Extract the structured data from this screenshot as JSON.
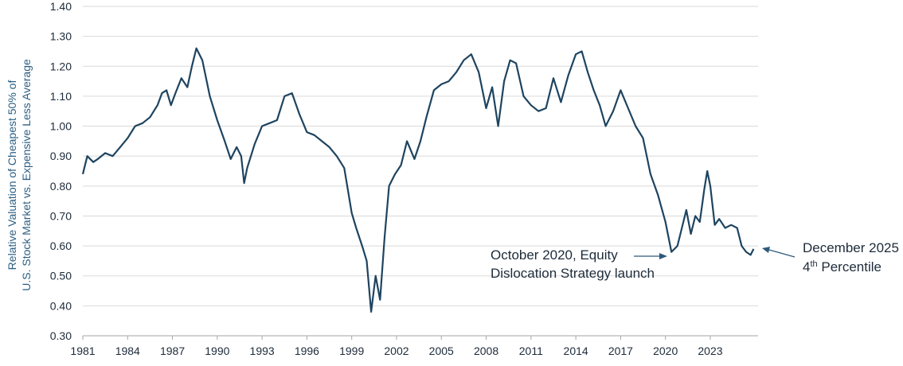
{
  "chart_data": {
    "type": "line",
    "title": "",
    "ylabel_line1": "Relative Valuation of Cheapest 50% of",
    "ylabel_line2": "U.S. Stock Market vs. Expensive Less Average",
    "xlabel": "",
    "ylim": [
      0.3,
      1.4
    ],
    "xlim": [
      1981,
      2026.2
    ],
    "y_ticks": [
      "0.30",
      "0.40",
      "0.50",
      "0.60",
      "0.70",
      "0.80",
      "0.90",
      "1.00",
      "1.10",
      "1.20",
      "1.30",
      "1.40"
    ],
    "x_ticks": [
      "1981",
      "1984",
      "1987",
      "1990",
      "1993",
      "1996",
      "1999",
      "2002",
      "2005",
      "2008",
      "2011",
      "2014",
      "2017",
      "2020",
      "2023"
    ],
    "grid": "horizontal",
    "series": [
      {
        "name": "Relative Valuation",
        "color": "#1e4460",
        "x": [
          1981.0,
          1981.3,
          1981.7,
          1982.0,
          1982.5,
          1983.0,
          1983.5,
          1984.0,
          1984.5,
          1985.0,
          1985.5,
          1986.0,
          1986.3,
          1986.6,
          1986.9,
          1987.2,
          1987.6,
          1988.0,
          1988.3,
          1988.6,
          1989.0,
          1989.5,
          1990.0,
          1990.5,
          1990.9,
          1991.3,
          1991.6,
          1991.8,
          1992.0,
          1992.5,
          1993.0,
          1993.5,
          1994.0,
          1994.5,
          1995.0,
          1995.5,
          1996.0,
          1996.5,
          1997.0,
          1997.5,
          1998.0,
          1998.5,
          1999.0,
          1999.3,
          1999.7,
          2000.0,
          2000.3,
          2000.6,
          2000.9,
          2001.2,
          2001.5,
          2001.9,
          2002.3,
          2002.7,
          2003.2,
          2003.6,
          2004.0,
          2004.5,
          2005.0,
          2005.5,
          2006.0,
          2006.5,
          2007.0,
          2007.5,
          2008.0,
          2008.4,
          2008.8,
          2009.2,
          2009.6,
          2010.0,
          2010.5,
          2011.0,
          2011.5,
          2012.0,
          2012.5,
          2013.0,
          2013.5,
          2014.0,
          2014.4,
          2014.8,
          2015.2,
          2015.6,
          2016.0,
          2016.5,
          2017.0,
          2017.5,
          2018.0,
          2018.5,
          2019.0,
          2019.5,
          2020.0,
          2020.4,
          2020.8,
          2021.1,
          2021.4,
          2021.7,
          2022.0,
          2022.3,
          2022.6,
          2022.8,
          2023.0,
          2023.3,
          2023.6,
          2024.0,
          2024.4,
          2024.8,
          2025.1,
          2025.4,
          2025.7,
          2025.9
        ],
        "values": [
          0.84,
          0.9,
          0.88,
          0.89,
          0.91,
          0.9,
          0.93,
          0.96,
          1.0,
          1.01,
          1.03,
          1.07,
          1.11,
          1.12,
          1.07,
          1.11,
          1.16,
          1.13,
          1.2,
          1.26,
          1.22,
          1.1,
          1.02,
          0.95,
          0.89,
          0.93,
          0.9,
          0.81,
          0.86,
          0.94,
          1.0,
          1.01,
          1.02,
          1.1,
          1.11,
          1.04,
          0.98,
          0.97,
          0.95,
          0.93,
          0.9,
          0.86,
          0.71,
          0.66,
          0.6,
          0.55,
          0.38,
          0.5,
          0.42,
          0.63,
          0.8,
          0.84,
          0.87,
          0.95,
          0.89,
          0.95,
          1.03,
          1.12,
          1.14,
          1.15,
          1.18,
          1.22,
          1.24,
          1.18,
          1.06,
          1.13,
          1.0,
          1.15,
          1.22,
          1.21,
          1.1,
          1.07,
          1.05,
          1.06,
          1.16,
          1.08,
          1.17,
          1.24,
          1.25,
          1.18,
          1.12,
          1.07,
          1.0,
          1.05,
          1.12,
          1.06,
          1.0,
          0.96,
          0.84,
          0.77,
          0.68,
          0.58,
          0.6,
          0.66,
          0.72,
          0.64,
          0.7,
          0.68,
          0.79,
          0.85,
          0.8,
          0.67,
          0.69,
          0.66,
          0.67,
          0.66,
          0.6,
          0.58,
          0.57,
          0.59
        ]
      }
    ],
    "annotations": [
      {
        "id": "launch",
        "lines": [
          "October 2020, Equity",
          "Dislocation Strategy launch"
        ],
        "x": 2020.8,
        "y": 0.6
      },
      {
        "id": "latest",
        "line1": "December 2025",
        "line2_pre": "4",
        "line2_sup": "th",
        "line2_post": " Percentile",
        "x": 2025.95,
        "y": 0.59
      }
    ]
  }
}
